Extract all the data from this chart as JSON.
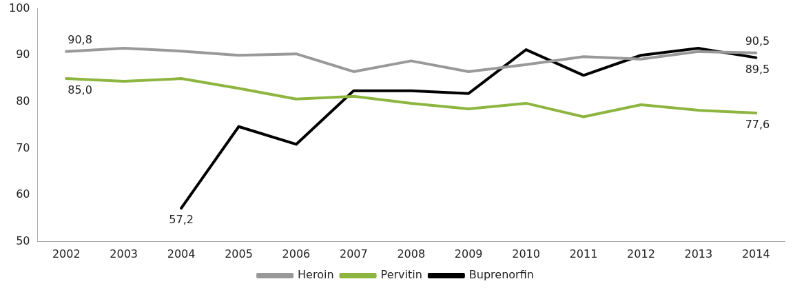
{
  "chart_data": {
    "type": "line",
    "categories": [
      "2002",
      "2003",
      "2004",
      "2005",
      "2006",
      "2007",
      "2008",
      "2009",
      "2010",
      "2011",
      "2012",
      "2013",
      "2014"
    ],
    "series": [
      {
        "name": "Heroin",
        "color": "#999999",
        "values": [
          90.8,
          91.5,
          90.9,
          90.0,
          90.3,
          86.5,
          88.8,
          86.5,
          88.0,
          89.7,
          89.2,
          90.8,
          90.5
        ],
        "value_labels": [
          "90,8",
          null,
          null,
          null,
          null,
          null,
          null,
          null,
          null,
          null,
          null,
          null,
          "90,5"
        ]
      },
      {
        "name": "Pervitin",
        "color": "#8db53f",
        "values": [
          85.0,
          84.4,
          85.0,
          82.9,
          80.6,
          81.2,
          79.7,
          78.5,
          79.7,
          76.8,
          79.4,
          78.2,
          77.6
        ],
        "value_labels": [
          "85,0",
          null,
          null,
          null,
          null,
          null,
          null,
          null,
          null,
          null,
          null,
          null,
          "77,6"
        ]
      },
      {
        "name": "Buprenorfin",
        "color": "#000000",
        "values": [
          null,
          null,
          57.2,
          74.7,
          70.9,
          82.4,
          82.4,
          81.8,
          91.2,
          85.7,
          90.0,
          91.5,
          89.5
        ],
        "value_labels": [
          null,
          null,
          "57,2",
          null,
          null,
          null,
          null,
          null,
          null,
          null,
          null,
          null,
          "89,5"
        ]
      }
    ],
    "ylim": [
      50,
      100
    ],
    "yticks": [
      50,
      60,
      70,
      80,
      90,
      100
    ],
    "grid": false,
    "legend": "bottom",
    "marker": "none",
    "line_style": "solid"
  }
}
